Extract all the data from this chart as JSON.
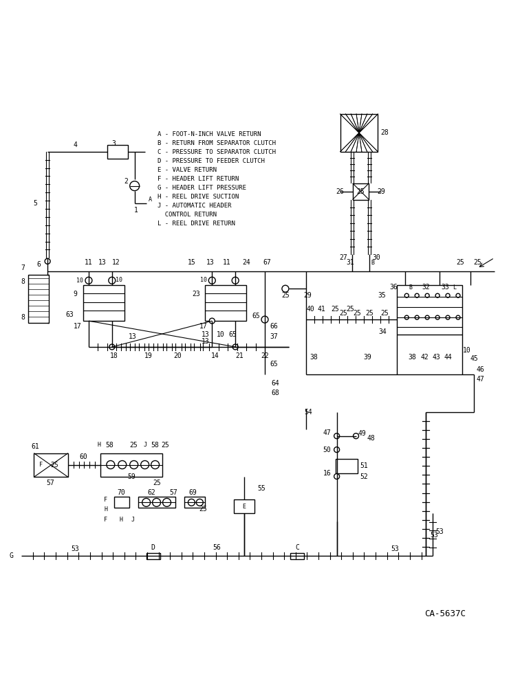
{
  "figure_id": "CA-5637C",
  "bg_color": "#ffffff",
  "legend_lines": [
    "A - FOOT-N-INCH VALVE RETURN",
    "B - RETURN FROM SEPARATOR CLUTCH",
    "C - PRESSURE TO SEPARATOR CLUTCH",
    "D - PRESSURE TO FEEDER CLUTCH",
    "E - VALVE RETURN",
    "F - HEADER LIFT RETURN",
    "G - HEADER LIFT PRESSURE",
    "H - REEL DRIVE SUCTION",
    "J - AUTOMATIC HEADER",
    "  CONTROL RETURN",
    "L - REEL DRIVE RETURN"
  ]
}
